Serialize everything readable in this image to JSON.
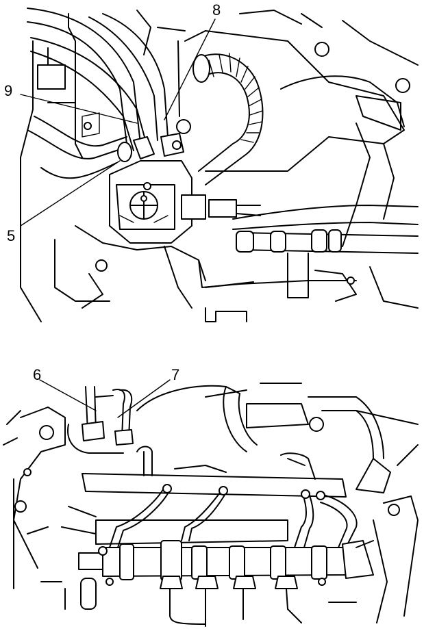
{
  "figure": {
    "top_view": {
      "callouts": [
        {
          "id": "8",
          "label": "8"
        },
        {
          "id": "9",
          "label": "9"
        },
        {
          "id": "5",
          "label": "5"
        }
      ]
    },
    "bottom_view": {
      "callouts": [
        {
          "id": "6",
          "label": "6"
        },
        {
          "id": "7",
          "label": "7"
        }
      ]
    }
  },
  "colors": {
    "line": "#000000",
    "background": "#ffffff"
  }
}
